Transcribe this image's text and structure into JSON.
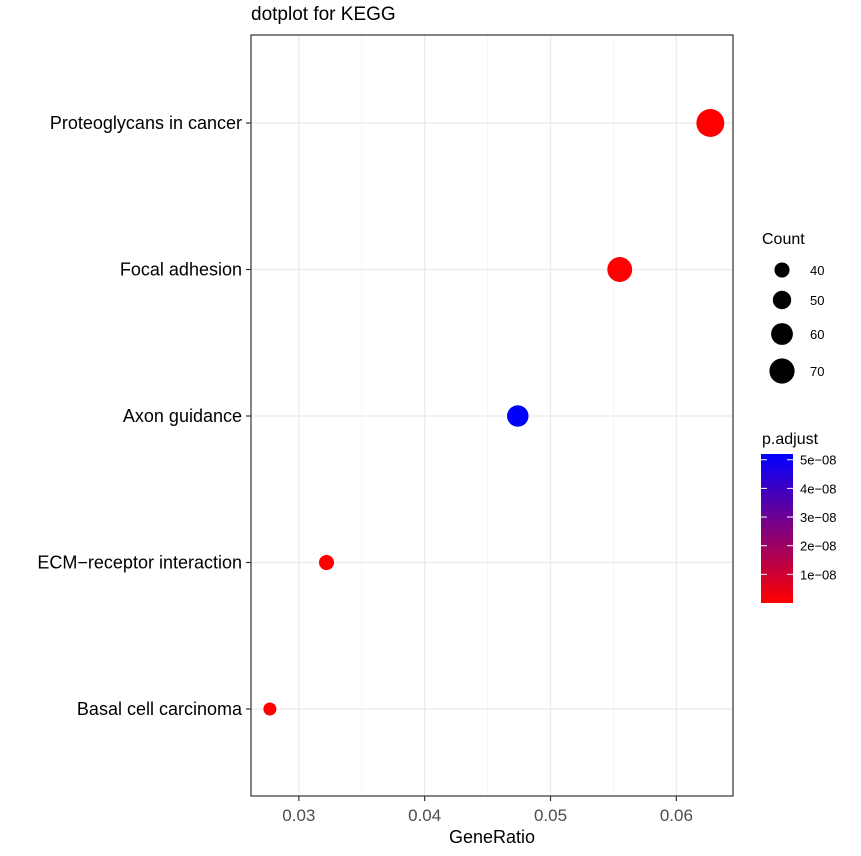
{
  "chart_data": {
    "type": "scatter",
    "title": "dotplot for KEGG",
    "xlabel": "GeneRatio",
    "ylabel": "",
    "xlim": [
      0.0262,
      0.0645
    ],
    "x_ticks": [
      0.03,
      0.04,
      0.05,
      0.06
    ],
    "x_tick_labels": [
      "0.03",
      "0.04",
      "0.05",
      "0.06"
    ],
    "categories": [
      "Proteoglycans in cancer",
      "Focal adhesion",
      "Axon guidance",
      "ECM−receptor interaction",
      "Basal cell carcinoma"
    ],
    "points": [
      {
        "term": "Proteoglycans in cancer",
        "gene_ratio": 0.0627,
        "count": 78,
        "p_adjust": 1e-10
      },
      {
        "term": "Focal adhesion",
        "gene_ratio": 0.0555,
        "count": 69,
        "p_adjust": 2e-10
      },
      {
        "term": "Axon guidance",
        "gene_ratio": 0.0474,
        "count": 59,
        "p_adjust": 5.2e-08
      },
      {
        "term": "ECM−receptor interaction",
        "gene_ratio": 0.0322,
        "count": 40,
        "p_adjust": 1e-10
      },
      {
        "term": "Basal cell carcinoma",
        "gene_ratio": 0.0277,
        "count": 34,
        "p_adjust": 1e-10
      }
    ],
    "size_legend": {
      "title": "Count",
      "values": [
        40,
        50,
        60,
        70
      ],
      "labels": [
        "40",
        "50",
        "60",
        "70"
      ]
    },
    "color_legend": {
      "title": "p.adjust",
      "low_color": "#FF0000",
      "high_color": "#0000FF",
      "range": [
        0,
        5.2e-08
      ],
      "ticks": [
        1e-08,
        2e-08,
        3e-08,
        4e-08,
        5e-08
      ],
      "tick_labels": [
        "1e−08",
        "2e−08",
        "3e−08",
        "4e−08",
        "5e−08"
      ]
    },
    "grid": true,
    "legend_position": "right"
  }
}
